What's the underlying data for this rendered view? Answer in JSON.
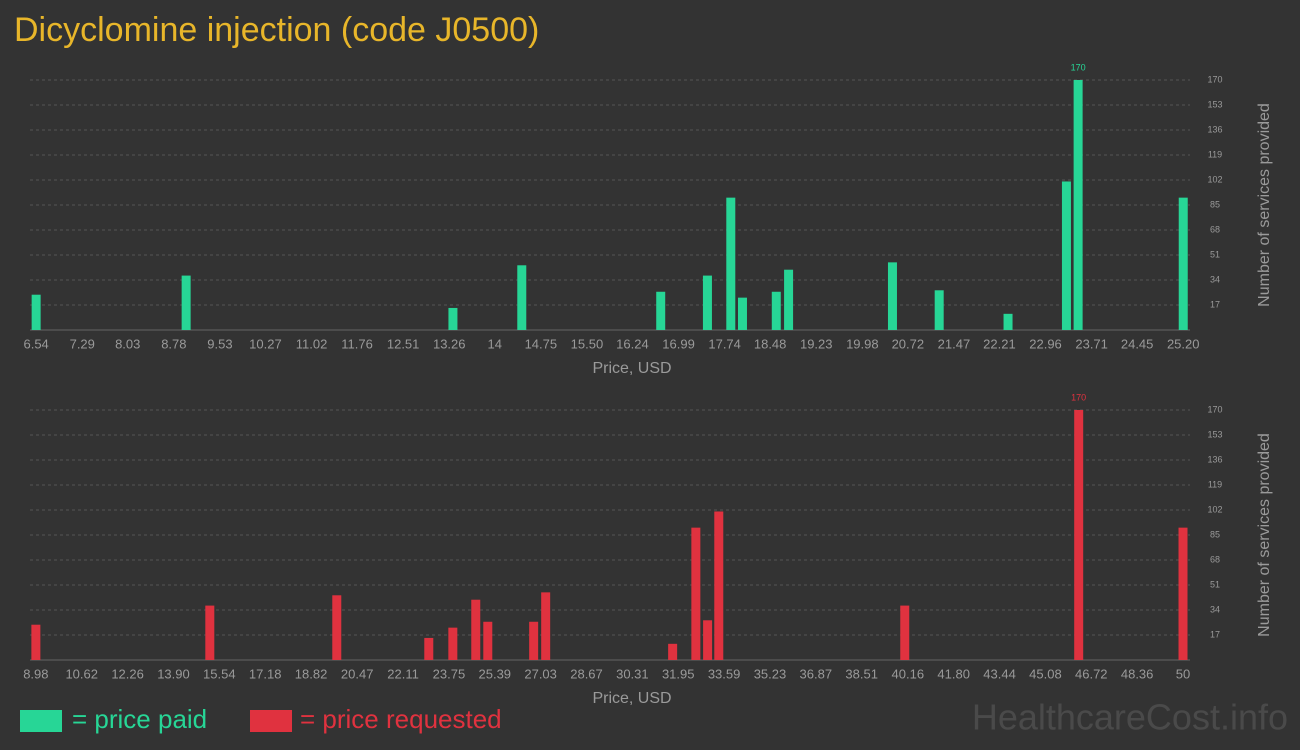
{
  "title": "Dicyclomine injection (code J0500)",
  "brand": "HealthcareCost.info",
  "chart_data": [
    {
      "type": "bar",
      "name": "= price paid",
      "color": "#27d696",
      "xlabel": "Price, USD",
      "ylabel": "Number of services provided",
      "x": [
        6.54,
        8.98,
        13.32,
        14.44,
        16.7,
        17.46,
        17.84,
        18.03,
        18.58,
        18.78,
        20.47,
        21.23,
        22.35,
        23.3,
        23.49,
        25.2
      ],
      "values": [
        24,
        37,
        15,
        44,
        26,
        37,
        90,
        22,
        26,
        41,
        46,
        27,
        11,
        101,
        170,
        90
      ],
      "xlim": [
        6.44,
        25.31
      ],
      "xticks": [
        6.54,
        7.29,
        8.03,
        8.78,
        9.53,
        10.27,
        11.02,
        11.76,
        12.51,
        13.26,
        14,
        14.75,
        {
          "value": 15.5,
          "label": "15.50"
        },
        16.24,
        16.99,
        17.74,
        18.48,
        19.23,
        19.98,
        20.72,
        21.47,
        22.21,
        22.96,
        23.71,
        24.45,
        {
          "value": 25.2,
          "label": "25.20"
        }
      ],
      "ylim": [
        0,
        170
      ],
      "yticks": [
        17,
        34,
        51,
        68,
        85,
        102,
        119,
        136,
        153,
        170
      ],
      "grid": true
    },
    {
      "type": "bar",
      "name": "= price requested",
      "color": "#e0323f",
      "xlabel": "Price, USD",
      "ylabel": "Number of services provided",
      "x": [
        8.98,
        15.2,
        19.74,
        23.03,
        23.89,
        24.71,
        25.14,
        26.78,
        27.21,
        31.75,
        32.58,
        33.0,
        33.4,
        40.05,
        46.27,
        50
      ],
      "values": [
        24,
        37,
        44,
        15,
        22,
        41,
        26,
        26,
        46,
        11,
        90,
        27,
        101,
        37,
        170,
        90
      ],
      "xlim": [
        8.77,
        50.25
      ],
      "xticks": [
        8.98,
        10.62,
        12.26,
        {
          "value": 13.9,
          "label": "13.90"
        },
        15.54,
        17.18,
        18.82,
        20.47,
        22.11,
        23.75,
        25.39,
        27.03,
        28.67,
        30.31,
        31.95,
        33.59,
        35.23,
        36.87,
        38.51,
        40.16,
        {
          "value": 41.8,
          "label": "41.80"
        },
        43.44,
        45.08,
        46.72,
        48.36,
        50
      ],
      "ylim": [
        0,
        170
      ],
      "yticks": [
        17,
        34,
        51,
        68,
        85,
        102,
        119,
        136,
        153,
        170
      ],
      "grid": true
    }
  ]
}
